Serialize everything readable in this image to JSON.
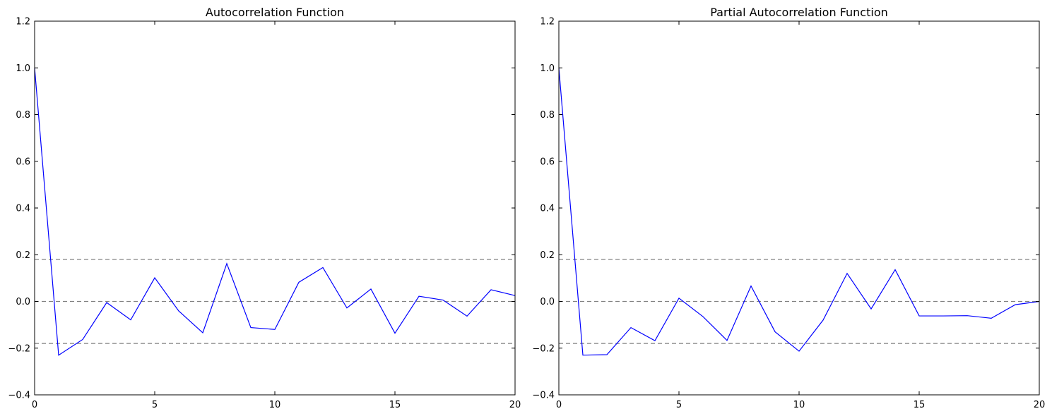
{
  "chart_data": [
    {
      "type": "line",
      "title": "Autocorrelation Function",
      "xlabel": "",
      "ylabel": "",
      "xlim": [
        0,
        20
      ],
      "ylim": [
        -0.4,
        1.2
      ],
      "xticks": [
        0,
        5,
        10,
        15,
        20
      ],
      "xtick_labels": [
        "0",
        "5",
        "10",
        "15",
        "20"
      ],
      "yticks": [
        -0.4,
        -0.2,
        0.0,
        0.2,
        0.4,
        0.6,
        0.8,
        1.0,
        1.2
      ],
      "ytick_labels": [
        "−0.4",
        "−0.2",
        "0.0",
        "0.2",
        "0.4",
        "0.6",
        "0.8",
        "1.0",
        "1.2"
      ],
      "grid": false,
      "series": [
        {
          "color": "#0000ff",
          "x": [
            0,
            1,
            2,
            3,
            4,
            5,
            6,
            7,
            8,
            9,
            10,
            11,
            12,
            13,
            14,
            15,
            16,
            17,
            18,
            19,
            20
          ],
          "values": [
            1.0,
            -0.23,
            -0.163,
            -0.005,
            -0.079,
            0.101,
            -0.041,
            -0.134,
            0.162,
            -0.112,
            -0.12,
            0.082,
            0.145,
            -0.028,
            0.053,
            -0.136,
            0.022,
            0.006,
            -0.063,
            0.05,
            0.025
          ]
        }
      ],
      "reference_lines": [
        {
          "y": 0.18,
          "style": "dashed",
          "color": "#808080"
        },
        {
          "y": 0.0,
          "style": "dashed",
          "color": "#808080"
        },
        {
          "y": -0.18,
          "style": "dashed",
          "color": "#808080"
        }
      ]
    },
    {
      "type": "line",
      "title": "Partial Autocorrelation Function",
      "xlabel": "",
      "ylabel": "",
      "xlim": [
        0,
        20
      ],
      "ylim": [
        -0.4,
        1.2
      ],
      "xticks": [
        0,
        5,
        10,
        15,
        20
      ],
      "xtick_labels": [
        "0",
        "5",
        "10",
        "15",
        "20"
      ],
      "yticks": [
        -0.4,
        -0.2,
        0.0,
        0.2,
        0.4,
        0.6,
        0.8,
        1.0,
        1.2
      ],
      "ytick_labels": [
        "−0.4",
        "−0.2",
        "0.0",
        "0.2",
        "0.4",
        "0.6",
        "0.8",
        "1.0",
        "1.2"
      ],
      "grid": false,
      "series": [
        {
          "color": "#0000ff",
          "x": [
            0,
            1,
            2,
            3,
            4,
            5,
            6,
            7,
            8,
            9,
            10,
            11,
            12,
            13,
            14,
            15,
            16,
            17,
            18,
            19,
            20
          ],
          "values": [
            1.0,
            -0.23,
            -0.228,
            -0.112,
            -0.168,
            0.014,
            -0.065,
            -0.167,
            0.066,
            -0.13,
            -0.213,
            -0.08,
            0.12,
            -0.032,
            0.136,
            -0.062,
            -0.062,
            -0.061,
            -0.072,
            -0.014,
            0.0
          ]
        }
      ],
      "reference_lines": [
        {
          "y": 0.18,
          "style": "dashed",
          "color": "#808080"
        },
        {
          "y": 0.0,
          "style": "dashed",
          "color": "#808080"
        },
        {
          "y": -0.18,
          "style": "dashed",
          "color": "#808080"
        }
      ]
    }
  ]
}
